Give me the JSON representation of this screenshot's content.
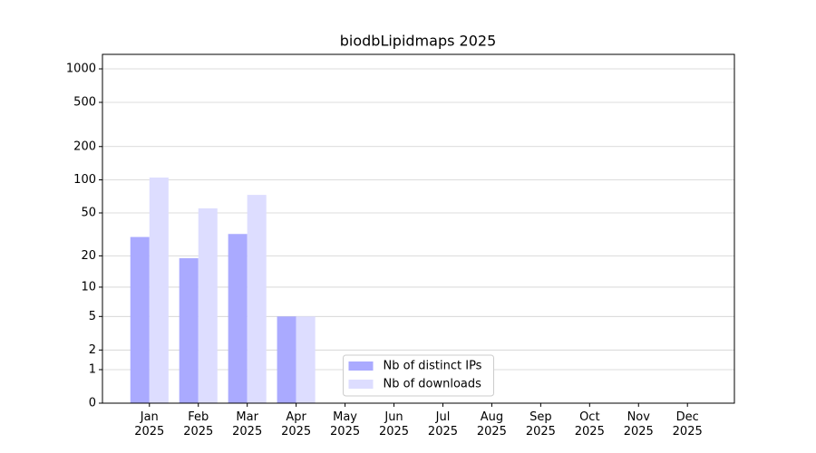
{
  "chart_data": {
    "type": "bar",
    "title": "biodbLipidmaps 2025",
    "categories": [
      "Jan 2025",
      "Feb 2025",
      "Mar 2025",
      "Apr 2025",
      "May 2025",
      "Jun 2025",
      "Jul 2025",
      "Aug 2025",
      "Sep 2025",
      "Oct 2025",
      "Nov 2025",
      "Dec 2025"
    ],
    "series": [
      {
        "name": "Nb of distinct IPs",
        "color": "#aaaaff",
        "values": [
          30,
          19,
          32,
          5,
          null,
          null,
          null,
          null,
          null,
          null,
          null,
          null
        ]
      },
      {
        "name": "Nb of downloads",
        "color": "#ddddff",
        "values": [
          105,
          55,
          73,
          5,
          null,
          null,
          null,
          null,
          null,
          null,
          null,
          null
        ]
      }
    ],
    "yscale": "log1p",
    "ylim": [
      0,
      1350
    ],
    "yticks": [
      0,
      1,
      2,
      5,
      10,
      20,
      50,
      100,
      200,
      500,
      1000
    ],
    "grid": true,
    "legend": "lower center"
  }
}
